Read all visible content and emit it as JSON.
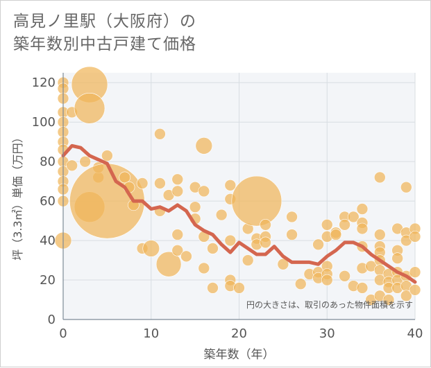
{
  "title": {
    "line1": "高見ノ里駅（大阪府）の",
    "line2": "築年数別中古戸建て価格"
  },
  "chart_data": {
    "type": "scatter",
    "xlabel": "築年数（年）",
    "ylabel": "坪（3.3㎡）単価（万円）",
    "xlim": [
      0,
      40
    ],
    "ylim": [
      0,
      125
    ],
    "xticks": [
      0,
      10,
      20,
      30,
      40
    ],
    "yticks": [
      0,
      20,
      40,
      60,
      80,
      100,
      120
    ],
    "grid": true,
    "annotation": "円の大きさは、取引のあった物件面積を示す",
    "colors": {
      "bubble": "#f0b65a",
      "line": "#d4664f",
      "grid": "#d8dde2",
      "plot_bg": "#f3f5f8",
      "axis_text": "#555555"
    },
    "series": [
      {
        "type": "bubble",
        "points": [
          {
            "x": 0,
            "y": 120,
            "s": 3
          },
          {
            "x": 0,
            "y": 117,
            "s": 3
          },
          {
            "x": 0,
            "y": 112,
            "s": 3
          },
          {
            "x": 0,
            "y": 105,
            "s": 3
          },
          {
            "x": 0,
            "y": 100,
            "s": 3
          },
          {
            "x": 0,
            "y": 95,
            "s": 3
          },
          {
            "x": 0,
            "y": 90,
            "s": 3
          },
          {
            "x": 0,
            "y": 86,
            "s": 3
          },
          {
            "x": 0,
            "y": 80,
            "s": 3
          },
          {
            "x": 0,
            "y": 75,
            "s": 3
          },
          {
            "x": 0,
            "y": 70,
            "s": 3
          },
          {
            "x": 0,
            "y": 66,
            "s": 3
          },
          {
            "x": 0,
            "y": 60,
            "s": 3
          },
          {
            "x": 0,
            "y": 40,
            "s": 5
          },
          {
            "x": 1,
            "y": 105,
            "s": 3
          },
          {
            "x": 1,
            "y": 78,
            "s": 3
          },
          {
            "x": 2.5,
            "y": 80,
            "s": 3
          },
          {
            "x": 3,
            "y": 119,
            "s": 12
          },
          {
            "x": 3,
            "y": 107,
            "s": 10
          },
          {
            "x": 3,
            "y": 57,
            "s": 10
          },
          {
            "x": 4,
            "y": 72,
            "s": 3
          },
          {
            "x": 4,
            "y": 77,
            "s": 3
          },
          {
            "x": 5,
            "y": 60,
            "s": 26
          },
          {
            "x": 5,
            "y": 83,
            "s": 3
          },
          {
            "x": 7,
            "y": 72,
            "s": 3
          },
          {
            "x": 7.5,
            "y": 67,
            "s": 3
          },
          {
            "x": 8,
            "y": 58,
            "s": 3
          },
          {
            "x": 9,
            "y": 69,
            "s": 3
          },
          {
            "x": 9,
            "y": 36,
            "s": 3
          },
          {
            "x": 10,
            "y": 36,
            "s": 5
          },
          {
            "x": 11,
            "y": 94,
            "s": 3
          },
          {
            "x": 11,
            "y": 69,
            "s": 3
          },
          {
            "x": 11,
            "y": 55,
            "s": 3
          },
          {
            "x": 12,
            "y": 28,
            "s": 8
          },
          {
            "x": 12,
            "y": 63,
            "s": 3
          },
          {
            "x": 13,
            "y": 71,
            "s": 3
          },
          {
            "x": 13,
            "y": 65,
            "s": 3
          },
          {
            "x": 13,
            "y": 43,
            "s": 3
          },
          {
            "x": 13,
            "y": 35,
            "s": 3
          },
          {
            "x": 14,
            "y": 32,
            "s": 3
          },
          {
            "x": 15,
            "y": 67,
            "s": 3
          },
          {
            "x": 15,
            "y": 57,
            "s": 3
          },
          {
            "x": 15,
            "y": 51,
            "s": 3
          },
          {
            "x": 16,
            "y": 88,
            "s": 5
          },
          {
            "x": 16,
            "y": 65,
            "s": 3
          },
          {
            "x": 16,
            "y": 42,
            "s": 3
          },
          {
            "x": 16,
            "y": 26,
            "s": 3
          },
          {
            "x": 17,
            "y": 36,
            "s": 3
          },
          {
            "x": 17,
            "y": 16,
            "s": 3
          },
          {
            "x": 18,
            "y": 53,
            "s": 3
          },
          {
            "x": 19,
            "y": 68,
            "s": 3
          },
          {
            "x": 19,
            "y": 61,
            "s": 3
          },
          {
            "x": 19,
            "y": 40,
            "s": 3
          },
          {
            "x": 19,
            "y": 20,
            "s": 3
          },
          {
            "x": 19,
            "y": 17,
            "s": 3
          },
          {
            "x": 20,
            "y": 16,
            "s": 3
          },
          {
            "x": 21,
            "y": 46,
            "s": 3
          },
          {
            "x": 21,
            "y": 30,
            "s": 3
          },
          {
            "x": 22,
            "y": 60,
            "s": 17
          },
          {
            "x": 22,
            "y": 41,
            "s": 3
          },
          {
            "x": 22,
            "y": 38,
            "s": 3
          },
          {
            "x": 23,
            "y": 48,
            "s": 3
          },
          {
            "x": 23,
            "y": 42,
            "s": 3
          },
          {
            "x": 23,
            "y": 39,
            "s": 3
          },
          {
            "x": 25,
            "y": 28,
            "s": 3
          },
          {
            "x": 26,
            "y": 52,
            "s": 3
          },
          {
            "x": 26,
            "y": 43,
            "s": 3
          },
          {
            "x": 27,
            "y": 18,
            "s": 3
          },
          {
            "x": 28,
            "y": 23,
            "s": 3
          },
          {
            "x": 29,
            "y": 38,
            "s": 3
          },
          {
            "x": 29,
            "y": 24,
            "s": 3
          },
          {
            "x": 29,
            "y": 21,
            "s": 3
          },
          {
            "x": 30,
            "y": 48,
            "s": 3
          },
          {
            "x": 30,
            "y": 42,
            "s": 3
          },
          {
            "x": 30,
            "y": 27,
            "s": 3
          },
          {
            "x": 30,
            "y": 23,
            "s": 3
          },
          {
            "x": 30,
            "y": 20,
            "s": 3
          },
          {
            "x": 31,
            "y": 44,
            "s": 3
          },
          {
            "x": 31,
            "y": 43,
            "s": 3
          },
          {
            "x": 32,
            "y": 52,
            "s": 3
          },
          {
            "x": 32,
            "y": 48,
            "s": 3
          },
          {
            "x": 32,
            "y": 22,
            "s": 3
          },
          {
            "x": 33,
            "y": 52,
            "s": 3
          },
          {
            "x": 33,
            "y": 17,
            "s": 3
          },
          {
            "x": 34,
            "y": 56,
            "s": 3
          },
          {
            "x": 34,
            "y": 49,
            "s": 3
          },
          {
            "x": 34,
            "y": 46,
            "s": 3
          },
          {
            "x": 34,
            "y": 37,
            "s": 3
          },
          {
            "x": 34,
            "y": 26,
            "s": 3
          },
          {
            "x": 34,
            "y": 16,
            "s": 3
          },
          {
            "x": 35,
            "y": 27,
            "s": 3
          },
          {
            "x": 35,
            "y": 10,
            "s": 3
          },
          {
            "x": 36,
            "y": 72,
            "s": 3
          },
          {
            "x": 36,
            "y": 43,
            "s": 3
          },
          {
            "x": 36,
            "y": 37,
            "s": 3
          },
          {
            "x": 36,
            "y": 34,
            "s": 3
          },
          {
            "x": 36,
            "y": 30,
            "s": 3
          },
          {
            "x": 36,
            "y": 25,
            "s": 3
          },
          {
            "x": 36,
            "y": 20,
            "s": 3
          },
          {
            "x": 36,
            "y": 12,
            "s": 3
          },
          {
            "x": 37,
            "y": 23,
            "s": 3
          },
          {
            "x": 37,
            "y": 19,
            "s": 3
          },
          {
            "x": 37,
            "y": 16,
            "s": 3
          },
          {
            "x": 37,
            "y": 10,
            "s": 3
          },
          {
            "x": 38,
            "y": 46,
            "s": 3
          },
          {
            "x": 38,
            "y": 35,
            "s": 3
          },
          {
            "x": 38,
            "y": 31,
            "s": 3
          },
          {
            "x": 38,
            "y": 24,
            "s": 3
          },
          {
            "x": 38,
            "y": 20,
            "s": 3
          },
          {
            "x": 38,
            "y": 16,
            "s": 3
          },
          {
            "x": 39,
            "y": 67,
            "s": 3
          },
          {
            "x": 39,
            "y": 44,
            "s": 3
          },
          {
            "x": 39,
            "y": 40,
            "s": 3
          },
          {
            "x": 39,
            "y": 22,
            "s": 3
          },
          {
            "x": 39,
            "y": 17,
            "s": 3
          },
          {
            "x": 39,
            "y": 12,
            "s": 3
          },
          {
            "x": 40,
            "y": 46,
            "s": 3
          },
          {
            "x": 40,
            "y": 42,
            "s": 3
          },
          {
            "x": 40,
            "y": 24,
            "s": 3
          },
          {
            "x": 40,
            "y": 15,
            "s": 3
          }
        ]
      },
      {
        "type": "line",
        "x": [
          0,
          1,
          2,
          3,
          4,
          5,
          6,
          7,
          8,
          9,
          10,
          11,
          12,
          13,
          14,
          15,
          16,
          17,
          18,
          19,
          20,
          21,
          22,
          23,
          24,
          25,
          26,
          27,
          28,
          29,
          30,
          31,
          32,
          33,
          34,
          35,
          36,
          37,
          38,
          39,
          40
        ],
        "y": [
          83,
          88,
          87,
          83,
          81,
          79,
          70,
          67,
          60,
          60,
          56,
          57,
          55,
          58,
          55,
          48,
          45,
          43,
          38,
          34,
          39,
          36,
          33,
          33,
          37,
          32,
          29,
          29,
          29,
          28,
          32,
          35,
          39,
          39,
          37,
          33,
          30,
          27,
          24,
          22,
          19
        ]
      }
    ]
  }
}
